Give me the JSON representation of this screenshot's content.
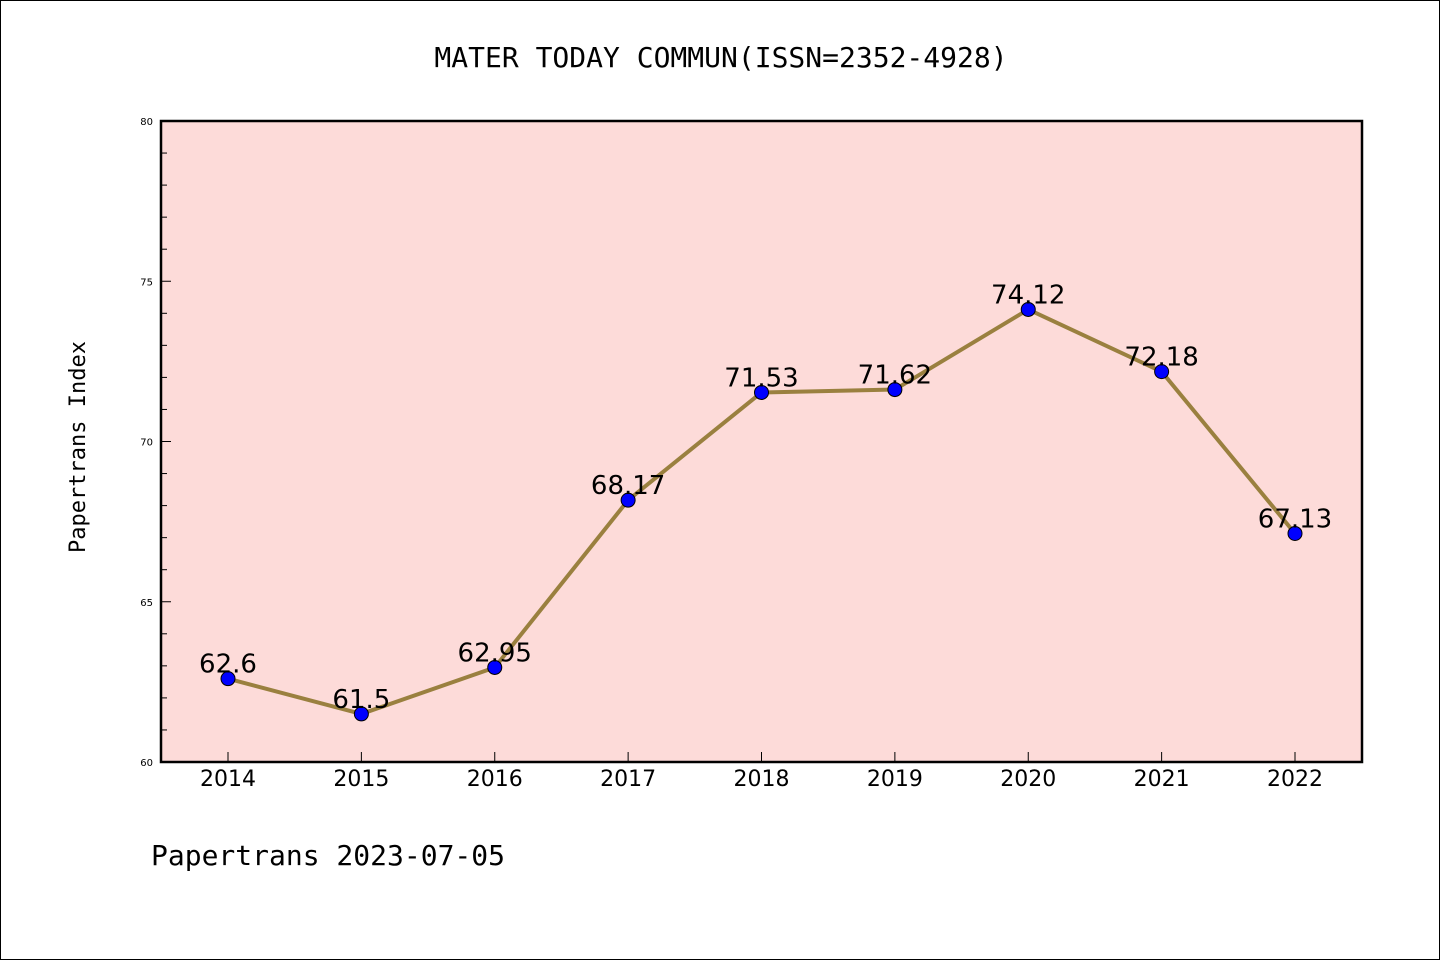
{
  "footer": "Papertrans 2023-07-05",
  "colors": {
    "plot_background": "#fddbd9",
    "line": "#9a803f",
    "marker": "#0000ff",
    "axis": "#000000"
  },
  "chart_data": {
    "type": "line",
    "title": "MATER TODAY COMMUN(ISSN=2352-4928)",
    "xlabel": "",
    "ylabel": "Papertrans Index",
    "categories": [
      "2014",
      "2015",
      "2016",
      "2017",
      "2018",
      "2019",
      "2020",
      "2021",
      "2022"
    ],
    "series": [
      {
        "values": [
          62.6,
          61.5,
          62.95,
          68.17,
          71.53,
          71.62,
          74.12,
          72.18,
          67.13
        ],
        "labels": [
          "62.6",
          "61.5",
          "62.95",
          "68.17",
          "71.53",
          "71.62",
          "74.12",
          "72.18",
          "67.13"
        ]
      }
    ],
    "ylim": [
      60,
      80
    ],
    "yticks": [
      60,
      65,
      70,
      75,
      80
    ],
    "yticks_minor_step": 1,
    "grid": false,
    "legend": "none",
    "markers": true,
    "data_labels": true
  }
}
